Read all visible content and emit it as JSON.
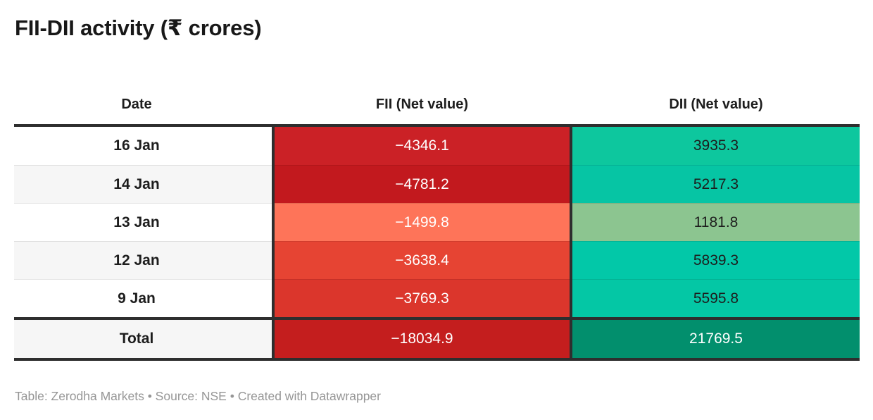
{
  "title": "FII-DII activity (₹ crores)",
  "table": {
    "columns": {
      "date": "Date",
      "fii": "FII (Net value)",
      "dii": "DII (Net value)"
    },
    "rows": [
      {
        "date": "16 Jan",
        "fii": "−4346.1",
        "dii": "3935.3",
        "fii_bg": "#cb2126",
        "dii_bg": "#0dc79e",
        "fii_fg": "#ffffff",
        "dii_fg": "#1d1d1d"
      },
      {
        "date": "14 Jan",
        "fii": "−4781.2",
        "dii": "5217.3",
        "fii_bg": "#c2191e",
        "dii_bg": "#06c5a4",
        "fii_fg": "#ffffff",
        "dii_fg": "#1d1d1d"
      },
      {
        "date": "13 Jan",
        "fii": "−1499.8",
        "dii": "1181.8",
        "fii_bg": "#fe7459",
        "dii_bg": "#8cc590",
        "fii_fg": "#ffffff",
        "dii_fg": "#1d1d1d"
      },
      {
        "date": "12 Jan",
        "fii": "−3638.4",
        "dii": "5839.3",
        "fii_bg": "#e64433",
        "dii_bg": "#02c8a8",
        "fii_fg": "#ffffff",
        "dii_fg": "#1d1d1d"
      },
      {
        "date": "9 Jan",
        "fii": "−3769.3",
        "dii": "5595.8",
        "fii_bg": "#db362c",
        "dii_bg": "#04c7a5",
        "fii_fg": "#ffffff",
        "dii_fg": "#1d1d1d"
      }
    ],
    "total": {
      "date": "Total",
      "fii": "−18034.9",
      "dii": "21769.5",
      "fii_bg": "#c41e1e",
      "dii_bg": "#028f6d",
      "fii_fg": "#ffffff",
      "dii_fg": "#ffffff"
    }
  },
  "footer": "Table: Zerodha Markets • Source: NSE • Created with Datawrapper",
  "colors": {
    "border_dark": "#2e2e2e",
    "row_stripe": "#f6f6f6",
    "row_plain": "#ffffff",
    "header_text": "#1d1d1d",
    "footer_text": "#969696"
  },
  "chart_data": {
    "type": "table",
    "title": "FII-DII activity (₹ crores)",
    "columns": [
      "Date",
      "FII (Net value)",
      "DII (Net value)"
    ],
    "rows": [
      [
        "16 Jan",
        -4346.1,
        3935.3
      ],
      [
        "14 Jan",
        -4781.2,
        5217.3
      ],
      [
        "13 Jan",
        -1499.8,
        1181.8
      ],
      [
        "12 Jan",
        -3638.4,
        5839.3
      ],
      [
        "9 Jan",
        -3769.3,
        5595.8
      ],
      [
        "Total",
        -18034.9,
        21769.5
      ]
    ],
    "heatmap": true,
    "heatmap_note": "negative FII values shaded red (darker = more negative), positive DII values shaded green/teal (darker = larger)",
    "footer": "Table: Zerodha Markets • Source: NSE • Created with Datawrapper"
  }
}
